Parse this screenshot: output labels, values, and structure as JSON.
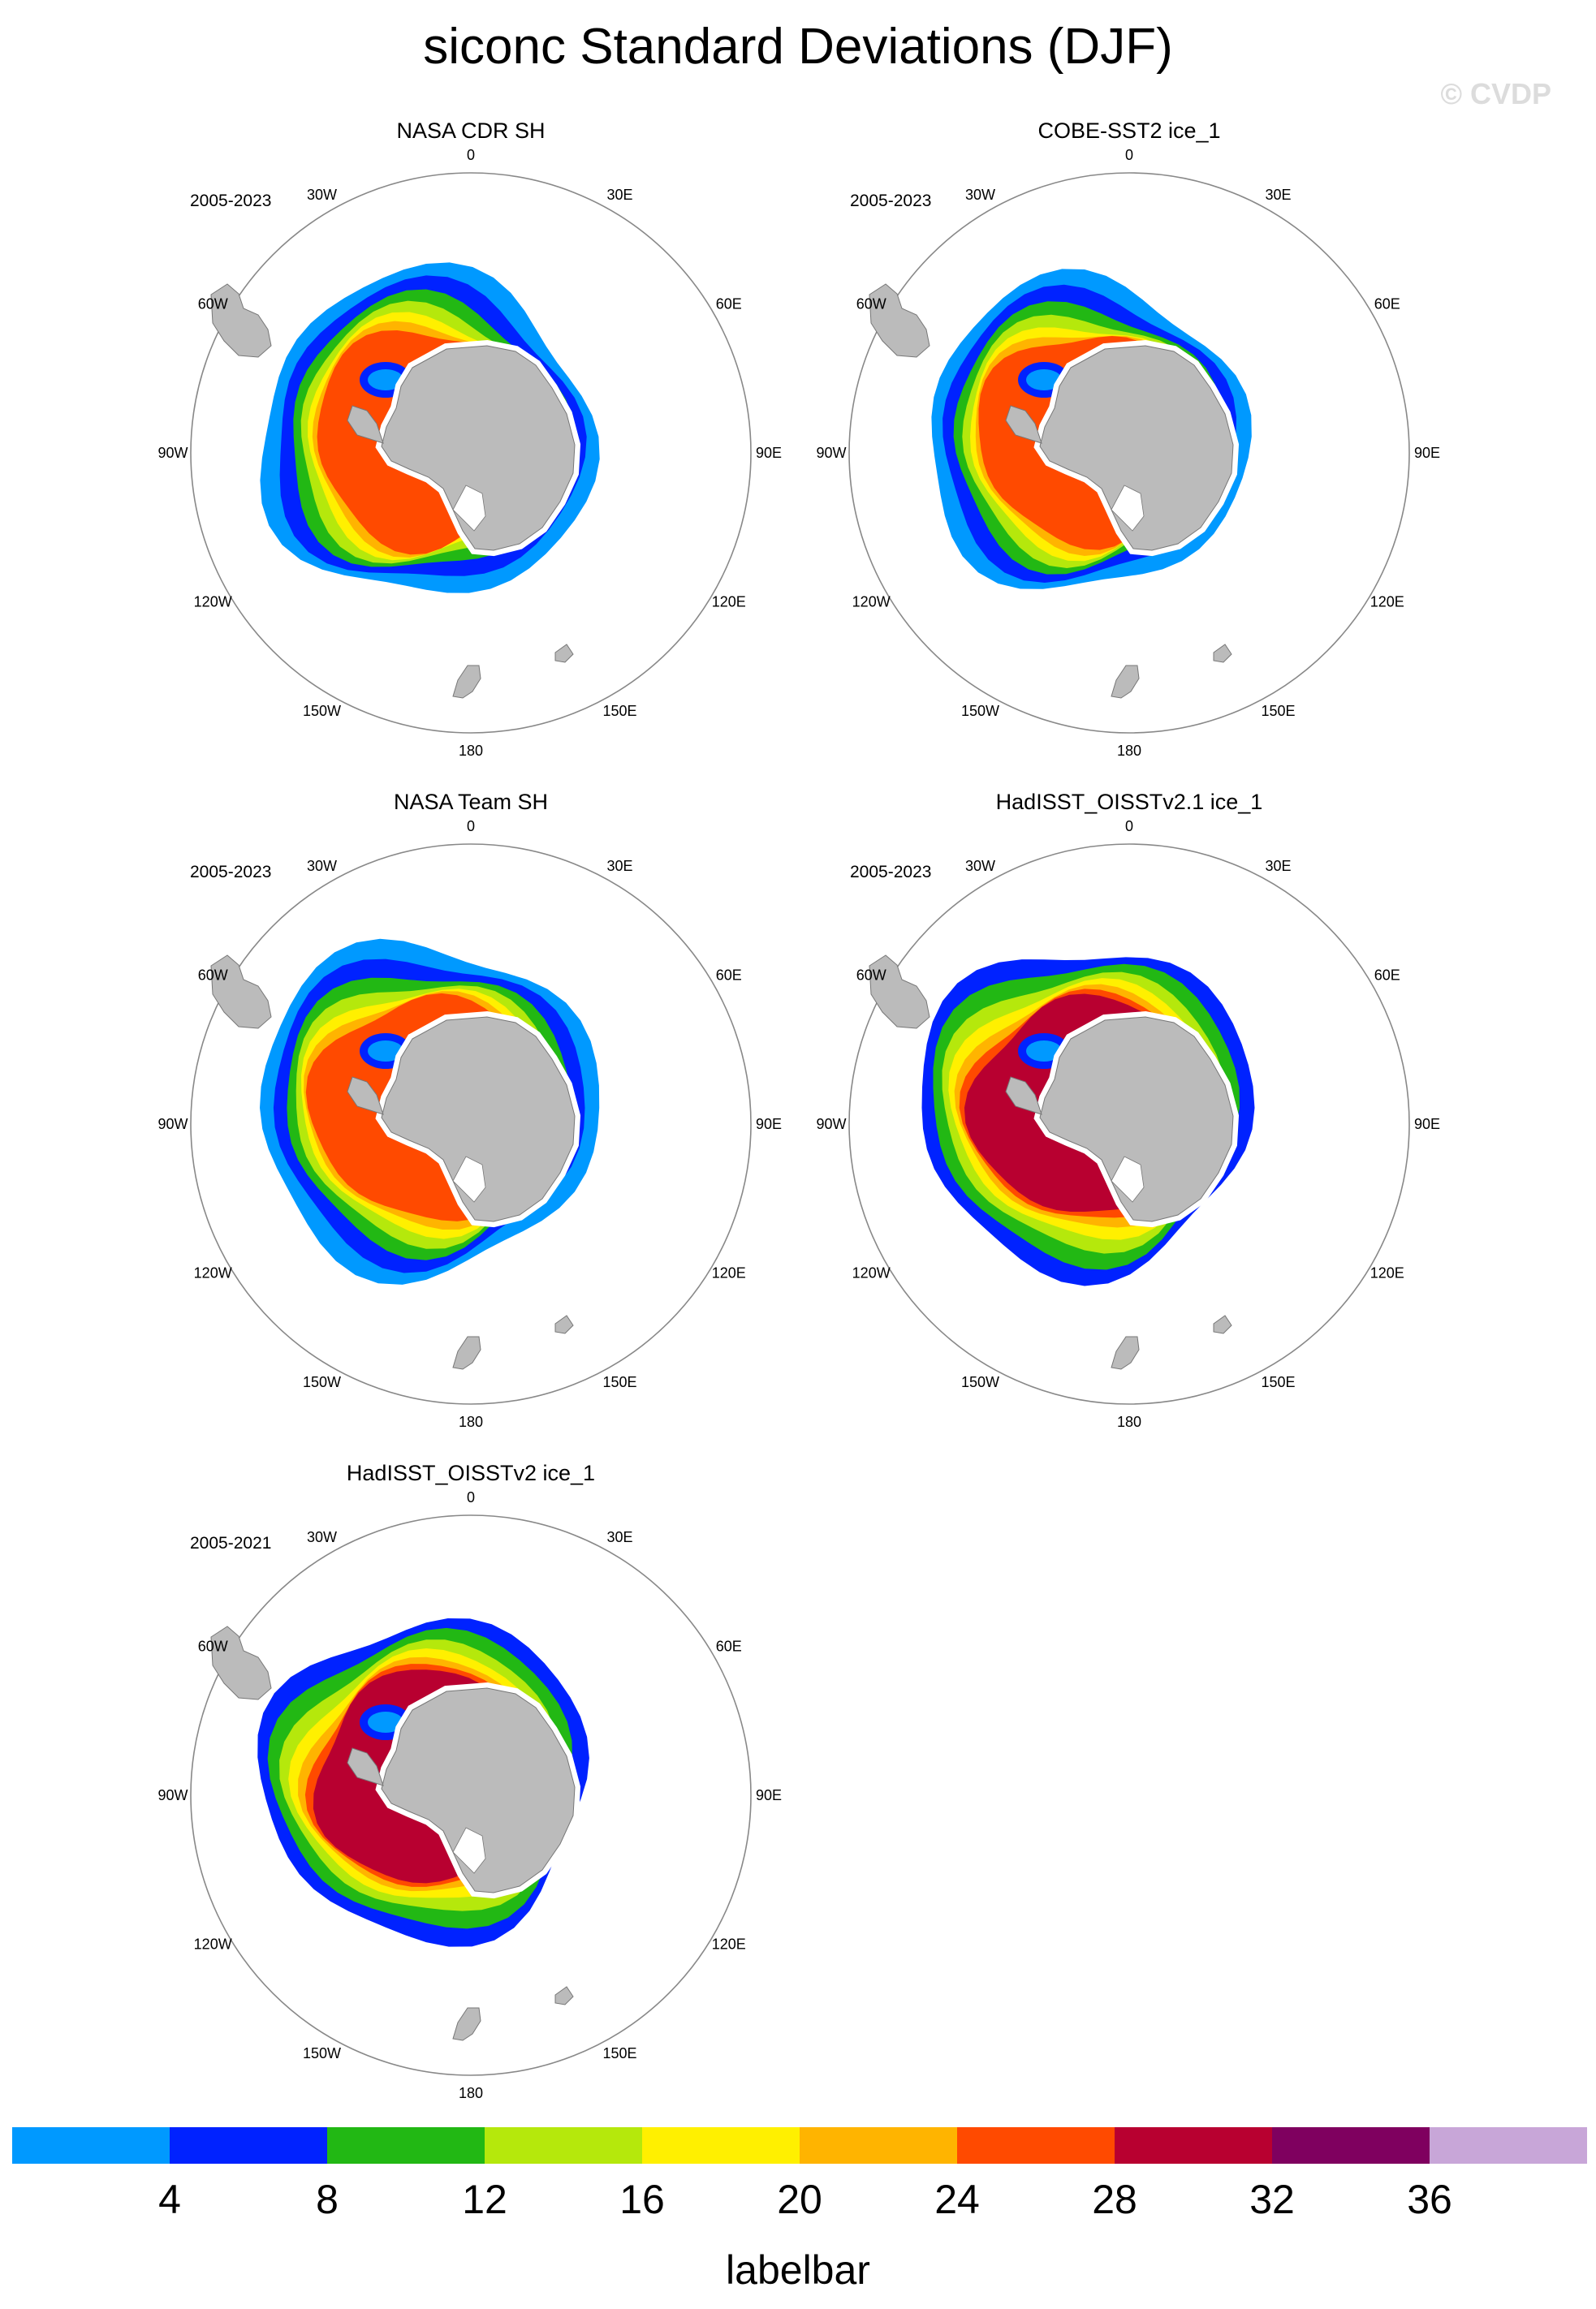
{
  "title": "siconc Standard Deviations (DJF)",
  "watermark": "© CVDP",
  "panels": [
    {
      "title": "NASA CDR SH",
      "period": "2005-2023"
    },
    {
      "title": "COBE-SST2 ice_1",
      "period": "2005-2023"
    },
    {
      "title": "NASA Team SH",
      "period": "2005-2023"
    },
    {
      "title": "HadISST_OISSTv2.1 ice_1",
      "period": "2005-2023"
    },
    {
      "title": "HadISST_OISSTv2 ice_1",
      "period": "2005-2021"
    }
  ],
  "lon_labels": [
    "0",
    "30E",
    "60E",
    "90E",
    "120E",
    "150E",
    "180",
    "150W",
    "120W",
    "90W",
    "60W",
    "30W"
  ],
  "labelbar": {
    "title": "labelbar",
    "ticks": [
      "4",
      "8",
      "12",
      "16",
      "20",
      "24",
      "28",
      "32",
      "36"
    ],
    "colors": [
      "#0099ff",
      "#0022ff",
      "#22b814",
      "#b5e80c",
      "#fff000",
      "#ffb400",
      "#ff4a00",
      "#b80030",
      "#7f005f",
      "#c8a6d8"
    ]
  },
  "map_colors": {
    "land": "#bbbbbb",
    "land_edge": "#777777",
    "circle": "#888888"
  }
}
